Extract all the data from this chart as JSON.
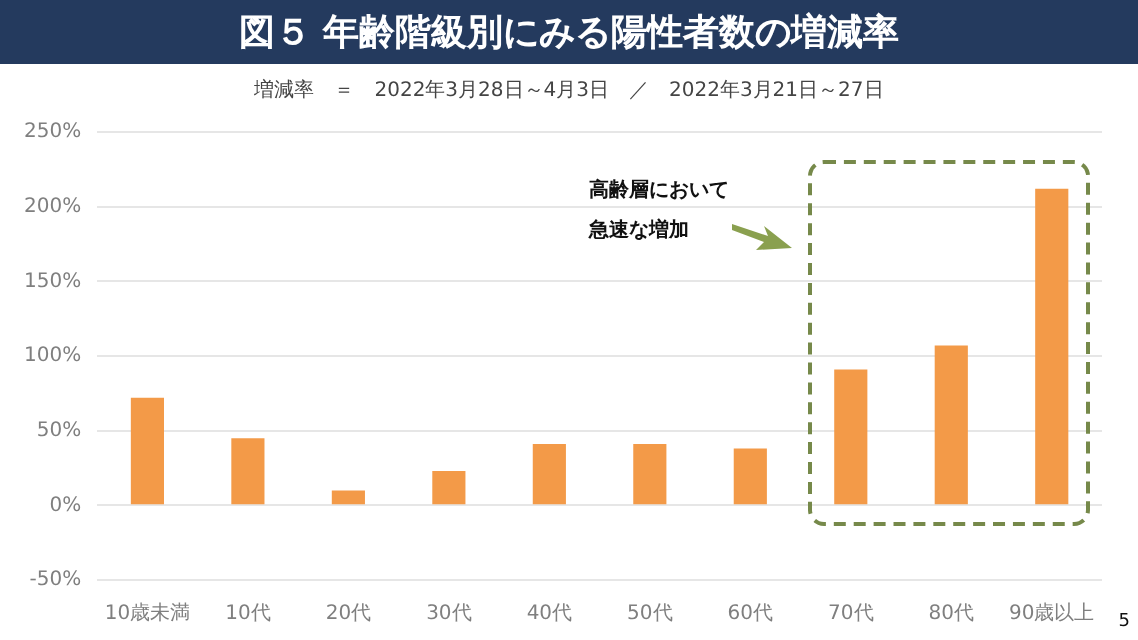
{
  "chart_data": {
    "type": "bar",
    "title": "図５ 年齢階級別にみる陽性者数の増減率",
    "subtitle": "増減率　＝　2022年3月28日～4月3日　／　2022年3月21日～27日",
    "categories": [
      "10歳未満",
      "10代",
      "20代",
      "30代",
      "40代",
      "50代",
      "60代",
      "70代",
      "80代",
      "90歳以上"
    ],
    "values": [
      72,
      45,
      10,
      23,
      41,
      41,
      38,
      91,
      107,
      212
    ],
    "color": "#f39a48",
    "ylim": [
      -50,
      250
    ],
    "yticks": [
      {
        "value": -50,
        "label": "-50%"
      },
      {
        "value": 0,
        "label": "0%"
      },
      {
        "value": 50,
        "label": "50%"
      },
      {
        "value": 100,
        "label": "100%"
      },
      {
        "value": 150,
        "label": "150%"
      },
      {
        "value": 200,
        "label": "200%"
      },
      {
        "value": 250,
        "label": "250%"
      }
    ],
    "grid": "y",
    "legend": false,
    "annotations": [
      "高齢層において",
      "急速な増加",
      "5"
    ]
  }
}
